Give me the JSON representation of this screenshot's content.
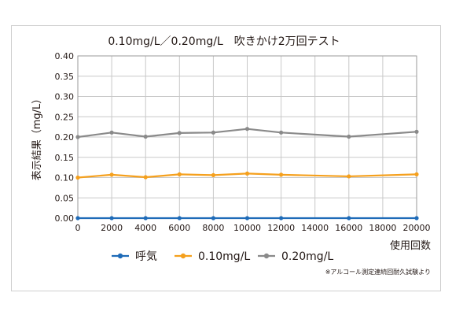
{
  "chart_data": {
    "type": "line",
    "title": "0.10mg/L／0.20mg/L　吹きかけ2万回テスト",
    "xlabel": "使用回数",
    "ylabel": "表示結果（mg/L）",
    "x": [
      0,
      2000,
      4000,
      6000,
      8000,
      10000,
      12000,
      16000,
      20000
    ],
    "xlim": [
      0,
      20000
    ],
    "ylim": [
      0,
      0.4
    ],
    "x_ticks": [
      "0",
      "2000",
      "4000",
      "6000",
      "8000",
      "10000",
      "12000",
      "14000",
      "16000",
      "18000",
      "20000"
    ],
    "y_ticks": [
      "0.00",
      "0.05",
      "0.10",
      "0.15",
      "0.20",
      "0.25",
      "0.30",
      "0.35",
      "0.40"
    ],
    "grid": true,
    "legend_position": "bottom",
    "series": [
      {
        "name": "呼気",
        "color": "#1e6bb8",
        "values": [
          0.0,
          0.0,
          0.0,
          0.0,
          0.0,
          0.0,
          0.0,
          0.0,
          0.0
        ]
      },
      {
        "name": "0.10mg/L",
        "color": "#f5a01d",
        "values": [
          0.1,
          0.107,
          0.101,
          0.108,
          0.106,
          0.11,
          0.107,
          0.103,
          0.108
        ]
      },
      {
        "name": "0.20mg/L",
        "color": "#8a8a8a",
        "values": [
          0.2,
          0.211,
          0.201,
          0.21,
          0.211,
          0.22,
          0.211,
          0.201,
          0.213
        ]
      }
    ],
    "note": "※アルコール測定連続回耐久試験より"
  }
}
